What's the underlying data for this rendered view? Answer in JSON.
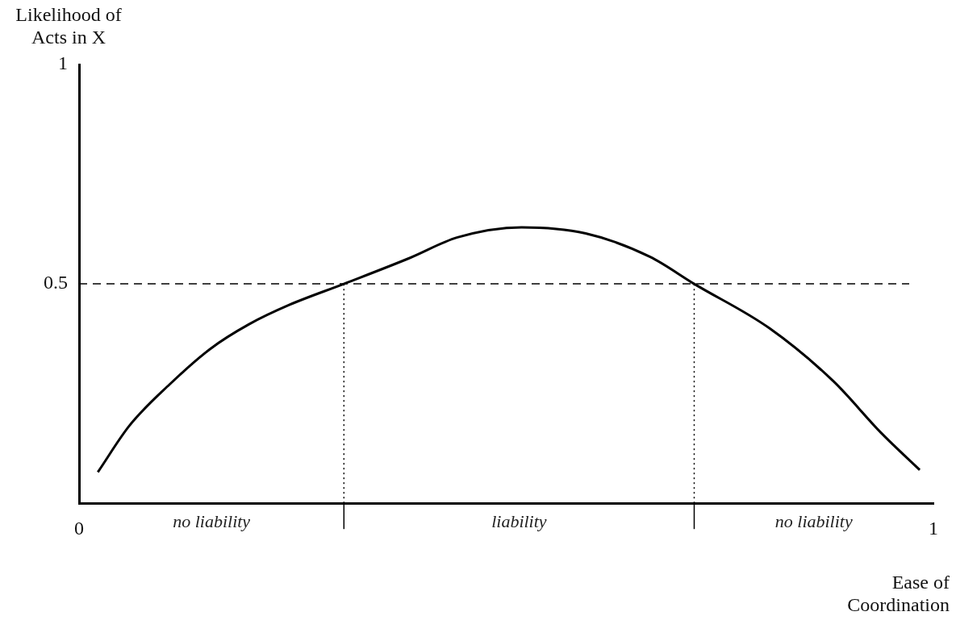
{
  "chart_data": {
    "type": "line",
    "xlabel": "Ease of Coordination",
    "ylabel": "Likelihood of Acts in X",
    "x": [
      0.022,
      0.059,
      0.106,
      0.153,
      0.199,
      0.246,
      0.31,
      0.387,
      0.443,
      0.518,
      0.593,
      0.668,
      0.72,
      0.808,
      0.883,
      0.939,
      0.984
    ],
    "series": [
      {
        "color": "#000000",
        "values": [
          0.071,
          0.177,
          0.271,
          0.351,
          0.408,
          0.452,
          0.5,
          0.559,
          0.606,
          0.629,
          0.615,
          0.562,
          0.5,
          0.399,
          0.278,
          0.16,
          0.076
        ]
      }
    ],
    "xlim": [
      0,
      1
    ],
    "xticks": [
      0,
      1
    ],
    "ylim": [
      0,
      1
    ],
    "yticks": [
      0.5,
      1
    ],
    "grid": false,
    "ref_lines": [
      {
        "axis": "y",
        "value": 0.5,
        "line_style": "dashed",
        "color": "#000000"
      },
      {
        "axis": "x",
        "value": 0.31,
        "line_style": "dotted",
        "color": "#000000"
      },
      {
        "axis": "x",
        "value": 0.72,
        "line_style": "dotted",
        "color": "#000000"
      }
    ],
    "annotations": [
      "no liability",
      "liability",
      "no liability"
    ]
  }
}
